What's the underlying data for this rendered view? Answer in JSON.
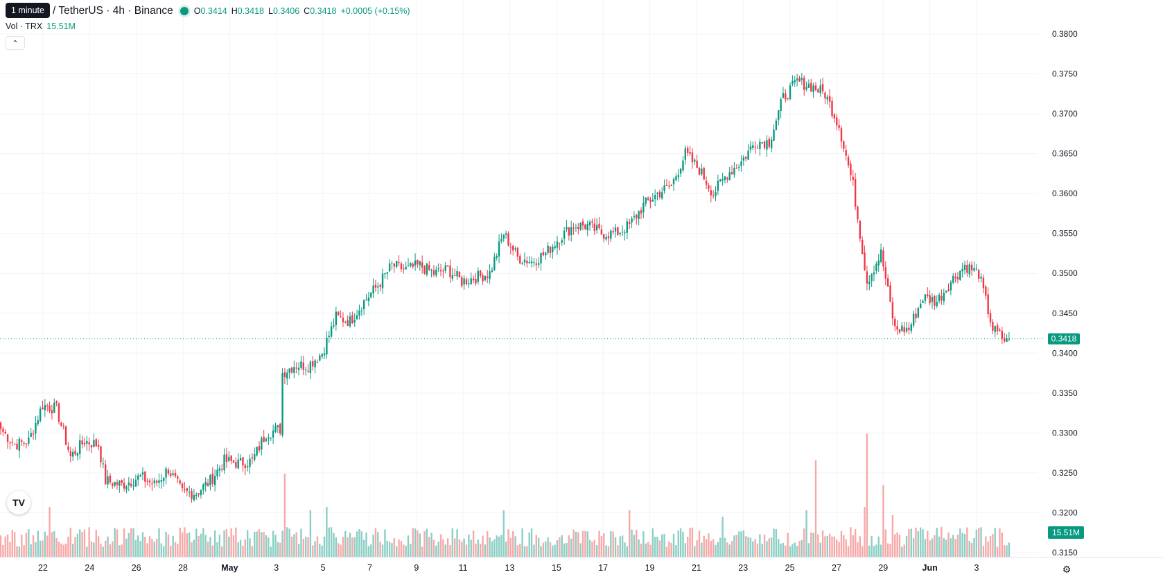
{
  "header": {
    "tooltip": "1 minute",
    "symbol_title": "/ TetherUS · 4h · Binance",
    "ohlc": {
      "o_label": "O",
      "o_value": "0.3414",
      "h_label": "H",
      "h_value": "0.3418",
      "l_label": "L",
      "l_value": "0.3406",
      "c_label": "C",
      "c_value": "0.3418",
      "change": "+0.0005 (+0.15%)"
    },
    "volume_label": "Vol · TRX",
    "volume_value": "15.51M",
    "collapse_icon": "chevron-up-icon"
  },
  "colors": {
    "up": "#089981",
    "down": "#F23645",
    "up_volume": "#8ccfc5",
    "down_volume": "#f7a9a8",
    "grid": "#f0f3fa",
    "axis_text": "#131722"
  },
  "chart_data": {
    "type": "candlestick",
    "interval": "4h",
    "grid": true,
    "price_axis": {
      "ticks": [
        "0.3800",
        "0.3750",
        "0.3700",
        "0.3650",
        "0.3600",
        "0.3550",
        "0.3500",
        "0.3450",
        "0.3400",
        "0.3350",
        "0.3300",
        "0.3250",
        "0.3200",
        "0.3150"
      ],
      "range": [
        0.3136,
        0.3812
      ]
    },
    "time_axis": {
      "ticks": [
        "22",
        "24",
        "26",
        "28",
        "May",
        "3",
        "5",
        "7",
        "9",
        "11",
        "13",
        "15",
        "17",
        "19",
        "21",
        "23",
        "25",
        "27",
        "29",
        "Jun",
        "3"
      ]
    },
    "last_price": "0.3418",
    "last_volume": "15.51M",
    "close_anchors": [
      [
        0,
        0.3305
      ],
      [
        6,
        0.3285
      ],
      [
        12,
        0.329
      ],
      [
        18,
        0.3335
      ],
      [
        24,
        0.333
      ],
      [
        30,
        0.327
      ],
      [
        36,
        0.329
      ],
      [
        42,
        0.3285
      ],
      [
        45,
        0.324
      ],
      [
        52,
        0.3235
      ],
      [
        60,
        0.3245
      ],
      [
        66,
        0.3235
      ],
      [
        72,
        0.3255
      ],
      [
        78,
        0.3225
      ],
      [
        84,
        0.3225
      ],
      [
        90,
        0.324
      ],
      [
        96,
        0.3265
      ],
      [
        102,
        0.3262
      ],
      [
        108,
        0.3265
      ],
      [
        114,
        0.33
      ],
      [
        120,
        0.3305
      ],
      [
        121,
        0.3375
      ],
      [
        126,
        0.3385
      ],
      [
        132,
        0.3385
      ],
      [
        138,
        0.34
      ],
      [
        144,
        0.3445
      ],
      [
        150,
        0.344
      ],
      [
        156,
        0.3465
      ],
      [
        162,
        0.3485
      ],
      [
        168,
        0.351
      ],
      [
        174,
        0.3505
      ],
      [
        180,
        0.351
      ],
      [
        186,
        0.35
      ],
      [
        192,
        0.3505
      ],
      [
        198,
        0.349
      ],
      [
        204,
        0.3495
      ],
      [
        210,
        0.35
      ],
      [
        216,
        0.355
      ],
      [
        222,
        0.352
      ],
      [
        228,
        0.3515
      ],
      [
        234,
        0.3525
      ],
      [
        240,
        0.3545
      ],
      [
        246,
        0.356
      ],
      [
        252,
        0.356
      ],
      [
        258,
        0.355
      ],
      [
        264,
        0.355
      ],
      [
        270,
        0.356
      ],
      [
        276,
        0.3585
      ],
      [
        282,
        0.36
      ],
      [
        288,
        0.361
      ],
      [
        294,
        0.365
      ],
      [
        300,
        0.363
      ],
      [
        306,
        0.36
      ],
      [
        312,
        0.3625
      ],
      [
        318,
        0.364
      ],
      [
        324,
        0.3665
      ],
      [
        330,
        0.3665
      ],
      [
        336,
        0.372
      ],
      [
        342,
        0.374
      ],
      [
        348,
        0.3735
      ],
      [
        354,
        0.3725
      ],
      [
        360,
        0.3685
      ],
      [
        366,
        0.361
      ],
      [
        372,
        0.349
      ],
      [
        378,
        0.3525
      ],
      [
        384,
        0.343
      ],
      [
        390,
        0.343
      ],
      [
        396,
        0.347
      ],
      [
        402,
        0.3465
      ],
      [
        408,
        0.349
      ],
      [
        414,
        0.351
      ],
      [
        420,
        0.35
      ],
      [
        426,
        0.343
      ],
      [
        432,
        0.3414
      ],
      [
        433,
        0.3418
      ]
    ],
    "volume_spikes": {
      "21": 0.3,
      "122": 0.5,
      "133": 0.28,
      "140": 0.3,
      "216": 0.28,
      "270": 0.28,
      "350": 0.58,
      "372": 0.74,
      "379": 0.43,
      "383": 0.25,
      "371": 0.3,
      "346": 0.28,
      "310": 0.24
    }
  }
}
